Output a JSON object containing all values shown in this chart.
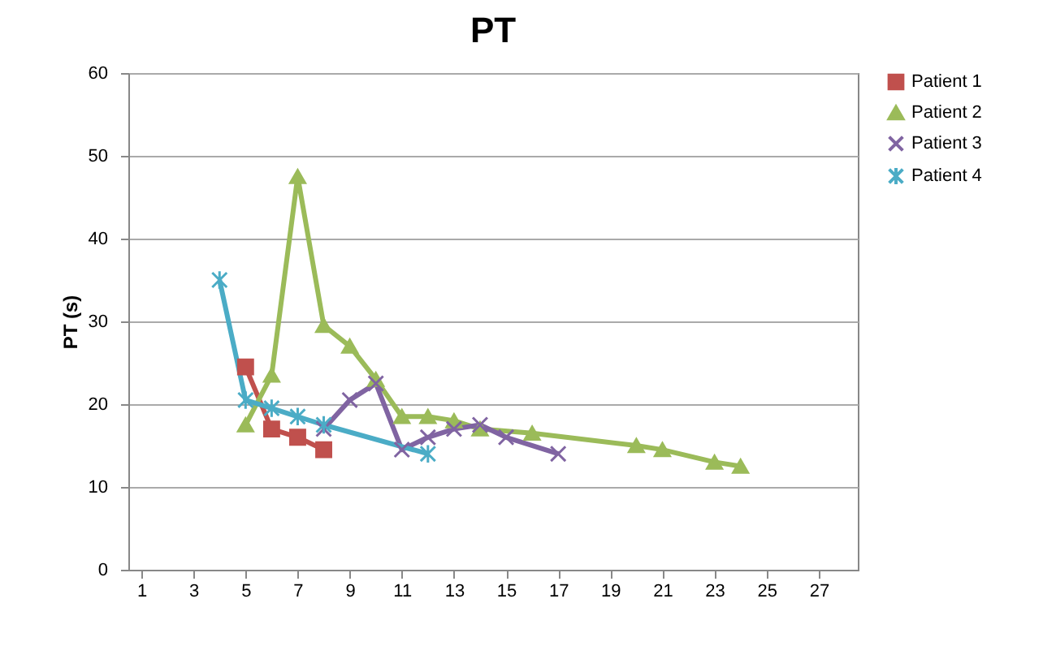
{
  "chart_data": {
    "type": "line",
    "title": "PT",
    "ylabel": "PT (s)",
    "xlim": [
      0.5,
      28.5
    ],
    "xticks": [
      1,
      3,
      5,
      7,
      9,
      11,
      13,
      15,
      17,
      19,
      21,
      23,
      25,
      27
    ],
    "ylim": [
      0,
      60
    ],
    "yticks": [
      0,
      10,
      20,
      30,
      40,
      50,
      60
    ],
    "grid": "y",
    "legend": "right",
    "series": [
      {
        "name": "Patient 1",
        "color": "#c0504d",
        "marker": "square",
        "x": [
          5,
          6,
          7,
          8
        ],
        "values": [
          24.5,
          17,
          16,
          14.5
        ]
      },
      {
        "name": "Patient 2",
        "color": "#9bbb59",
        "marker": "triangle",
        "x": [
          5,
          6,
          7,
          8,
          9,
          10,
          11,
          12,
          13,
          14,
          16,
          20,
          21,
          23,
          24
        ],
        "values": [
          17.5,
          23.5,
          47.5,
          29.5,
          27,
          23,
          18.5,
          18.5,
          18,
          17,
          16.5,
          15,
          14.5,
          13,
          12.5
        ]
      },
      {
        "name": "Patient 3",
        "color": "#8064a2",
        "marker": "cross",
        "x": [
          8,
          9,
          10,
          11,
          12,
          13,
          14,
          15,
          17
        ],
        "values": [
          17,
          20.5,
          22.5,
          14.5,
          16,
          17,
          17.5,
          16,
          14
        ]
      },
      {
        "name": "Patient 4",
        "color": "#4bacc6",
        "marker": "cross",
        "x": [
          4,
          5,
          6,
          7,
          8,
          12
        ],
        "values": [
          35,
          20.5,
          19.5,
          18.5,
          17.5,
          14
        ]
      }
    ]
  }
}
